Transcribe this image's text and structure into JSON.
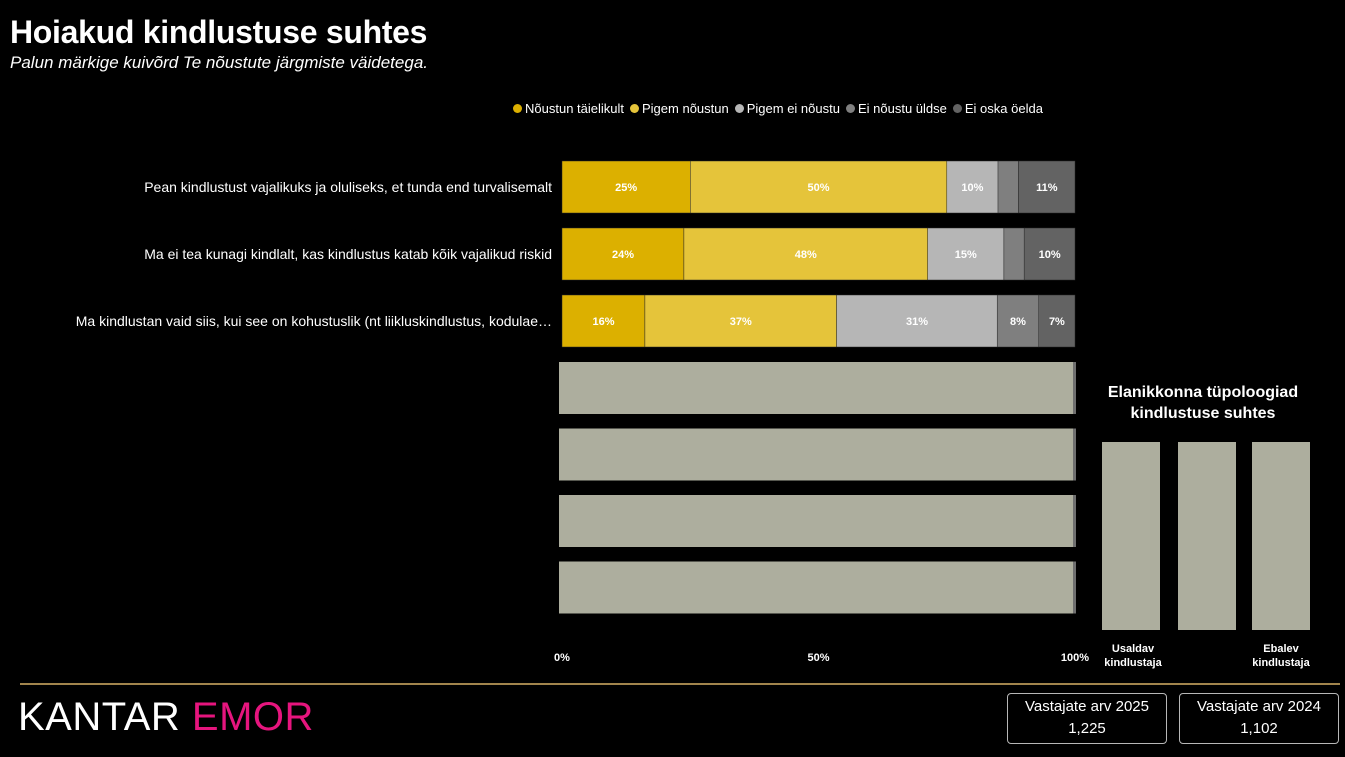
{
  "header": {
    "title": "Hoiakud kindlustuse suhtes",
    "subtitle": "Palun märkige kuivõrd Te nõustute järgmiste väidetega."
  },
  "legend": [
    {
      "label": "Nõustun täielikult",
      "color": "#dcb000"
    },
    {
      "label": "Pigem nõustun",
      "color": "#e5c43a"
    },
    {
      "label": "Pigem ei nõustu",
      "color": "#b6b6b6"
    },
    {
      "label": "Ei nõustu üldse",
      "color": "#7f7f7f"
    },
    {
      "label": "Ei oska öelda",
      "color": "#636363"
    }
  ],
  "chart_data": {
    "type": "bar",
    "orientation": "horizontal",
    "stacked": true,
    "categories": [
      "Pean kindlustust vajalikuks ja oluliseks, et tunda end turvalisemalt",
      "Ma ei tea kunagi kindlalt, kas kindlustus katab kõik vajalikud riskid",
      "Ma kindlustan vaid siis, kui see on kohustuslik (nt liikluskindlustus, kodulae…"
    ],
    "series": [
      {
        "name": "Nõustun täielikult",
        "values": [
          25,
          24,
          16
        ],
        "color": "#dcb000"
      },
      {
        "name": "Pigem nõustun",
        "values": [
          50,
          48,
          37
        ],
        "color": "#e5c43a"
      },
      {
        "name": "Pigem ei nõustu",
        "values": [
          10,
          15,
          31
        ],
        "color": "#b6b6b6"
      },
      {
        "name": "Ei nõustu üldse",
        "values": [
          4,
          4,
          8
        ],
        "color": "#7f7f7f"
      },
      {
        "name": "Ei oska öelda",
        "values": [
          11,
          10,
          7
        ],
        "color": "#636363"
      }
    ],
    "data_labels": [
      [
        "25%",
        "50%",
        "10%",
        "",
        "11%"
      ],
      [
        "24%",
        "48%",
        "15%",
        "",
        "10%"
      ],
      [
        "16%",
        "37%",
        "31%",
        "8%",
        "7%"
      ]
    ],
    "x_ticks": [
      "0%",
      "50%",
      "100%"
    ],
    "xlim": [
      0,
      100
    ],
    "placeholder_rows": 4,
    "placeholder_color": "#adae9e",
    "legend_position": "top",
    "grid": false
  },
  "side_panel": {
    "title_line1": "Elanikkonna tüpoloogiad",
    "title_line2": "kindlustuse suhtes",
    "labels": [
      {
        "line1": "Usaldav",
        "line2": "kindlustaja"
      },
      {
        "line1": "",
        "line2": ""
      },
      {
        "line1": "Ebalev",
        "line2": "kindlustaja"
      }
    ]
  },
  "footer": {
    "logo_left": "KANTAR",
    "logo_right": "EMOR",
    "cards": [
      {
        "label": "Vastajate arv 2025",
        "value": "1,225"
      },
      {
        "label": "Vastajate arv 2024",
        "value": "1,102"
      }
    ]
  }
}
